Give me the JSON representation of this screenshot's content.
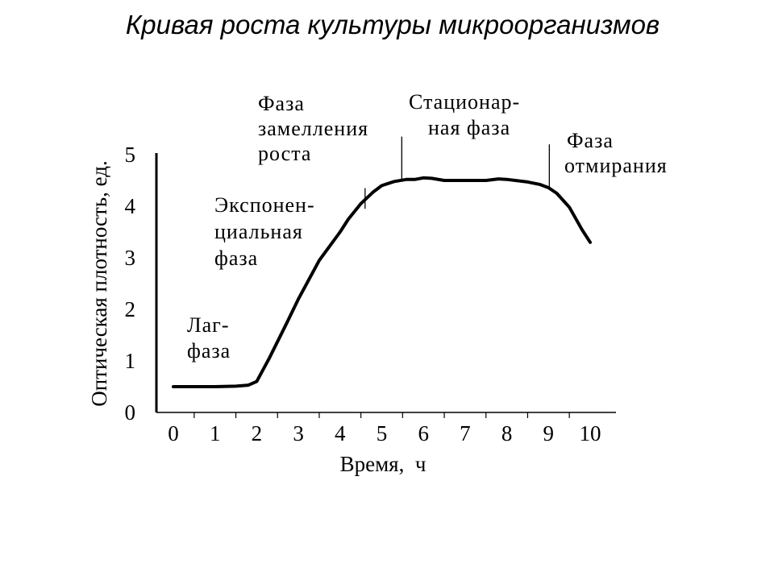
{
  "chart_data": {
    "type": "line",
    "title": "Кривая роста культуры микроорганизмов",
    "xlabel": "Время,  ч",
    "ylabel": "Оптическая плотность, ед.",
    "xlim": [
      -0.5,
      10.5
    ],
    "ylim": [
      0,
      5
    ],
    "x_ticks": [
      0,
      1,
      2,
      3,
      4,
      5,
      6,
      7,
      8,
      9,
      10
    ],
    "y_ticks": [
      0,
      1,
      2,
      3,
      4,
      5
    ],
    "grid": false,
    "series": [
      {
        "color": "#000000",
        "x": [
          0,
          0.5,
          1,
          1.5,
          1.8,
          2,
          2.3,
          2.7,
          3,
          3.5,
          4,
          4.2,
          4.5,
          4.8,
          5,
          5.3,
          5.6,
          5.8,
          6,
          6.2,
          6.5,
          7,
          7.5,
          7.8,
          8,
          8.5,
          8.8,
          9,
          9.2,
          9.5,
          9.8,
          10
        ],
        "y": [
          0.5,
          0.5,
          0.5,
          0.51,
          0.53,
          0.6,
          1.05,
          1.7,
          2.2,
          2.95,
          3.5,
          3.75,
          4.05,
          4.28,
          4.4,
          4.48,
          4.52,
          4.52,
          4.55,
          4.54,
          4.5,
          4.5,
          4.5,
          4.53,
          4.52,
          4.47,
          4.42,
          4.36,
          4.25,
          3.98,
          3.55,
          3.3
        ]
      }
    ],
    "annotations": [
      {
        "label": "lag",
        "lines": [
          "Лаг-",
          "фаза"
        ]
      },
      {
        "label": "exponential",
        "lines": [
          "Экспонен-",
          "циальная",
          "фаза"
        ]
      },
      {
        "label": "deceleration",
        "lines": [
          "Фаза",
          "замелления",
          "роста"
        ]
      },
      {
        "label": "stationary",
        "lines": [
          "Стационар-",
          "ная фаза"
        ]
      },
      {
        "label": "death",
        "lines": [
          "Фаза",
          "отмирания"
        ]
      }
    ]
  }
}
